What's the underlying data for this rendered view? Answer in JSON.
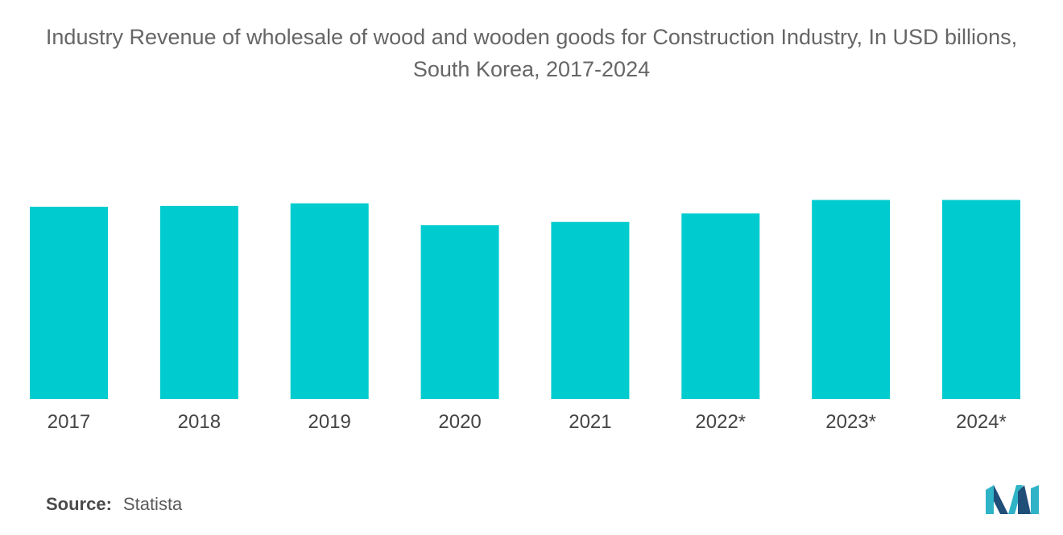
{
  "title": "Industry Revenue of wholesale of wood and wooden goods for Construction Industry, In USD billions, South Korea, 2017-2024",
  "source": {
    "label": "Source:",
    "value": "Statista"
  },
  "logo": {
    "name": "mordor-intelligence-logo",
    "colors": [
      "#1f4e79",
      "#2fb3c6"
    ]
  },
  "chart_data": {
    "type": "bar",
    "title": "Industry Revenue of wholesale of wood and wooden goods for Construction Industry, In USD billions, South Korea, 2017-2024",
    "categories": [
      "2017",
      "2018",
      "2019",
      "2020",
      "2021",
      "2022*",
      "2023*",
      "2024*"
    ],
    "values": [
      2.28,
      2.29,
      2.32,
      2.06,
      2.1,
      2.2,
      2.36,
      2.36
    ],
    "ylim": [
      0,
      3.3
    ],
    "xlabel": "",
    "ylabel": "",
    "grid": false,
    "legend": "none",
    "bar_color": "#00cccf",
    "label_color": "#444444"
  }
}
